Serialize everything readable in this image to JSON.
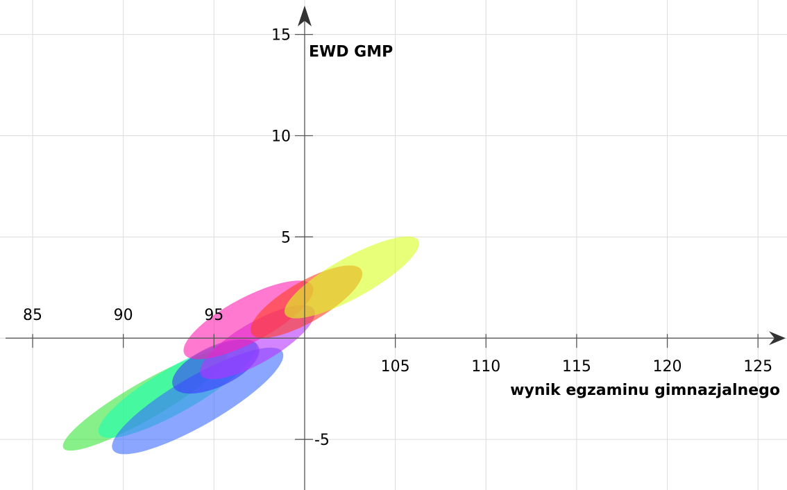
{
  "chart_data": {
    "type": "scatter",
    "title": "",
    "xlabel": "wynik egzaminu gimnazjalnego",
    "ylabel": "EWD GMP",
    "xlim": [
      83.2,
      126.6
    ],
    "ylim": [
      -7.5,
      16.7
    ],
    "grid": true,
    "x_ticks": [
      85,
      90,
      95,
      105,
      110,
      115,
      120,
      125
    ],
    "y_ticks": [
      15,
      10,
      5,
      -5
    ],
    "series": [
      {
        "color": "#39e639",
        "cx": 91.2,
        "cy": -3.1,
        "rx": 5.2,
        "ry": 0.9,
        "angle": 30
      },
      {
        "color": "#1affb0",
        "cx": 93.0,
        "cy": -2.5,
        "rx": 5.0,
        "ry": 1.1,
        "angle": 30
      },
      {
        "color": "#3d6bff",
        "cx": 94.1,
        "cy": -3.1,
        "rx": 5.4,
        "ry": 1.2,
        "angle": 30
      },
      {
        "color": "#3a3aff",
        "cx": 95.1,
        "cy": -1.4,
        "rx": 2.6,
        "ry": 1.0,
        "angle": 25
      },
      {
        "color": "#b533ff",
        "cx": 97.4,
        "cy": -0.2,
        "rx": 3.6,
        "ry": 1.0,
        "angle": 30
      },
      {
        "color": "#ff1fb0",
        "cx": 96.9,
        "cy": 0.9,
        "rx": 4.0,
        "ry": 1.1,
        "angle": 28
      },
      {
        "color": "#ff3d1f",
        "cx": 100.1,
        "cy": 1.8,
        "rx": 3.5,
        "ry": 1.0,
        "angle": 30
      },
      {
        "color": "#d8ff1f",
        "cx": 102.6,
        "cy": 3.0,
        "rx": 4.2,
        "ry": 1.0,
        "angle": 29
      }
    ]
  }
}
